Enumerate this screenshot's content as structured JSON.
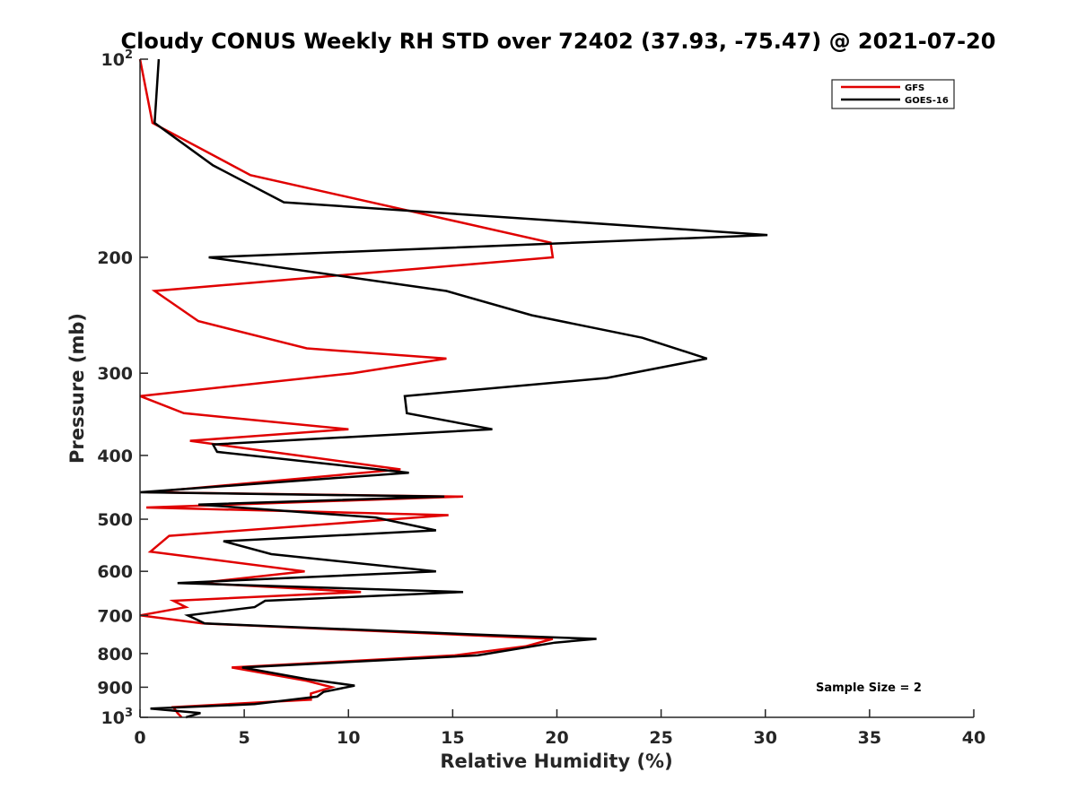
{
  "chart_data": {
    "type": "line",
    "title": "Cloudy CONUS Weekly RH STD over 72402 (37.93, -75.47) @ 2021-07-20",
    "xlabel": "Relative Humidity (%)",
    "ylabel": "Pressure (mb)",
    "xlim": [
      0,
      40
    ],
    "ylim": [
      100,
      1000
    ],
    "y_scale": "log",
    "y_reversed": true,
    "grid": false,
    "legend_position": "top-right",
    "x_ticks": [
      {
        "value": 0,
        "label": "0"
      },
      {
        "value": 5,
        "label": "5"
      },
      {
        "value": 10,
        "label": "10"
      },
      {
        "value": 15,
        "label": "15"
      },
      {
        "value": 20,
        "label": "20"
      },
      {
        "value": 25,
        "label": "25"
      },
      {
        "value": 30,
        "label": "30"
      },
      {
        "value": 35,
        "label": "35"
      },
      {
        "value": 40,
        "label": "40"
      }
    ],
    "y_ticks": [
      {
        "value": 100,
        "label": "10",
        "sup": "2"
      },
      {
        "value": 200,
        "label": "200",
        "sup": ""
      },
      {
        "value": 300,
        "label": "300",
        "sup": ""
      },
      {
        "value": 400,
        "label": "400",
        "sup": ""
      },
      {
        "value": 500,
        "label": "500",
        "sup": ""
      },
      {
        "value": 600,
        "label": "600",
        "sup": ""
      },
      {
        "value": 700,
        "label": "700",
        "sup": ""
      },
      {
        "value": 800,
        "label": "800",
        "sup": ""
      },
      {
        "value": 900,
        "label": "900",
        "sup": ""
      },
      {
        "value": 1000,
        "label": "10",
        "sup": "3"
      }
    ],
    "annotation": "Sample Size = 2",
    "series": [
      {
        "name": "GFS",
        "color": "#e00000",
        "points": [
          [
            0.0,
            100
          ],
          [
            0.6,
            125
          ],
          [
            5.3,
            150
          ],
          [
            19.7,
            190
          ],
          [
            19.8,
            200
          ],
          [
            0.7,
            225
          ],
          [
            2.8,
            250
          ],
          [
            8.0,
            275
          ],
          [
            14.7,
            285
          ],
          [
            10.2,
            300
          ],
          [
            0.0,
            325
          ],
          [
            2.1,
            345
          ],
          [
            10.0,
            365
          ],
          [
            2.4,
            380
          ],
          [
            12.5,
            420
          ],
          [
            0.4,
            455
          ],
          [
            15.5,
            462
          ],
          [
            0.3,
            480
          ],
          [
            14.8,
            493
          ],
          [
            1.4,
            530
          ],
          [
            0.5,
            560
          ],
          [
            7.9,
            600
          ],
          [
            2.8,
            625
          ],
          [
            10.6,
            645
          ],
          [
            1.6,
            665
          ],
          [
            2.2,
            680
          ],
          [
            0.0,
            700
          ],
          [
            3.0,
            720
          ],
          [
            19.8,
            760
          ],
          [
            18.5,
            780
          ],
          [
            15.1,
            805
          ],
          [
            4.4,
            840
          ],
          [
            8.0,
            880
          ],
          [
            9.2,
            900
          ],
          [
            8.2,
            920
          ],
          [
            8.2,
            940
          ],
          [
            1.6,
            965
          ],
          [
            1.8,
            985
          ],
          [
            2.0,
            1000
          ]
        ]
      },
      {
        "name": "GOES-16",
        "color": "#000000",
        "points": [
          [
            0.9,
            100
          ],
          [
            0.7,
            125
          ],
          [
            3.5,
            145
          ],
          [
            6.9,
            165
          ],
          [
            30.1,
            185
          ],
          [
            3.3,
            200
          ],
          [
            14.7,
            225
          ],
          [
            18.8,
            245
          ],
          [
            24.1,
            265
          ],
          [
            27.2,
            285
          ],
          [
            22.4,
            305
          ],
          [
            12.7,
            325
          ],
          [
            12.8,
            345
          ],
          [
            16.9,
            365
          ],
          [
            3.5,
            385
          ],
          [
            3.7,
            395
          ],
          [
            12.9,
            425
          ],
          [
            0.0,
            455
          ],
          [
            14.6,
            462
          ],
          [
            2.8,
            475
          ],
          [
            11.3,
            497
          ],
          [
            14.2,
            520
          ],
          [
            4.0,
            540
          ],
          [
            6.3,
            565
          ],
          [
            14.2,
            600
          ],
          [
            1.8,
            625
          ],
          [
            15.5,
            645
          ],
          [
            6.0,
            665
          ],
          [
            5.5,
            680
          ],
          [
            2.3,
            700
          ],
          [
            3.1,
            720
          ],
          [
            16.8,
            750
          ],
          [
            21.9,
            760
          ],
          [
            19.9,
            770
          ],
          [
            16.2,
            805
          ],
          [
            4.9,
            840
          ],
          [
            8.0,
            875
          ],
          [
            10.3,
            895
          ],
          [
            8.8,
            915
          ],
          [
            8.5,
            930
          ],
          [
            5.5,
            955
          ],
          [
            0.5,
            970
          ],
          [
            2.9,
            985
          ],
          [
            2.2,
            1000
          ]
        ]
      }
    ]
  }
}
